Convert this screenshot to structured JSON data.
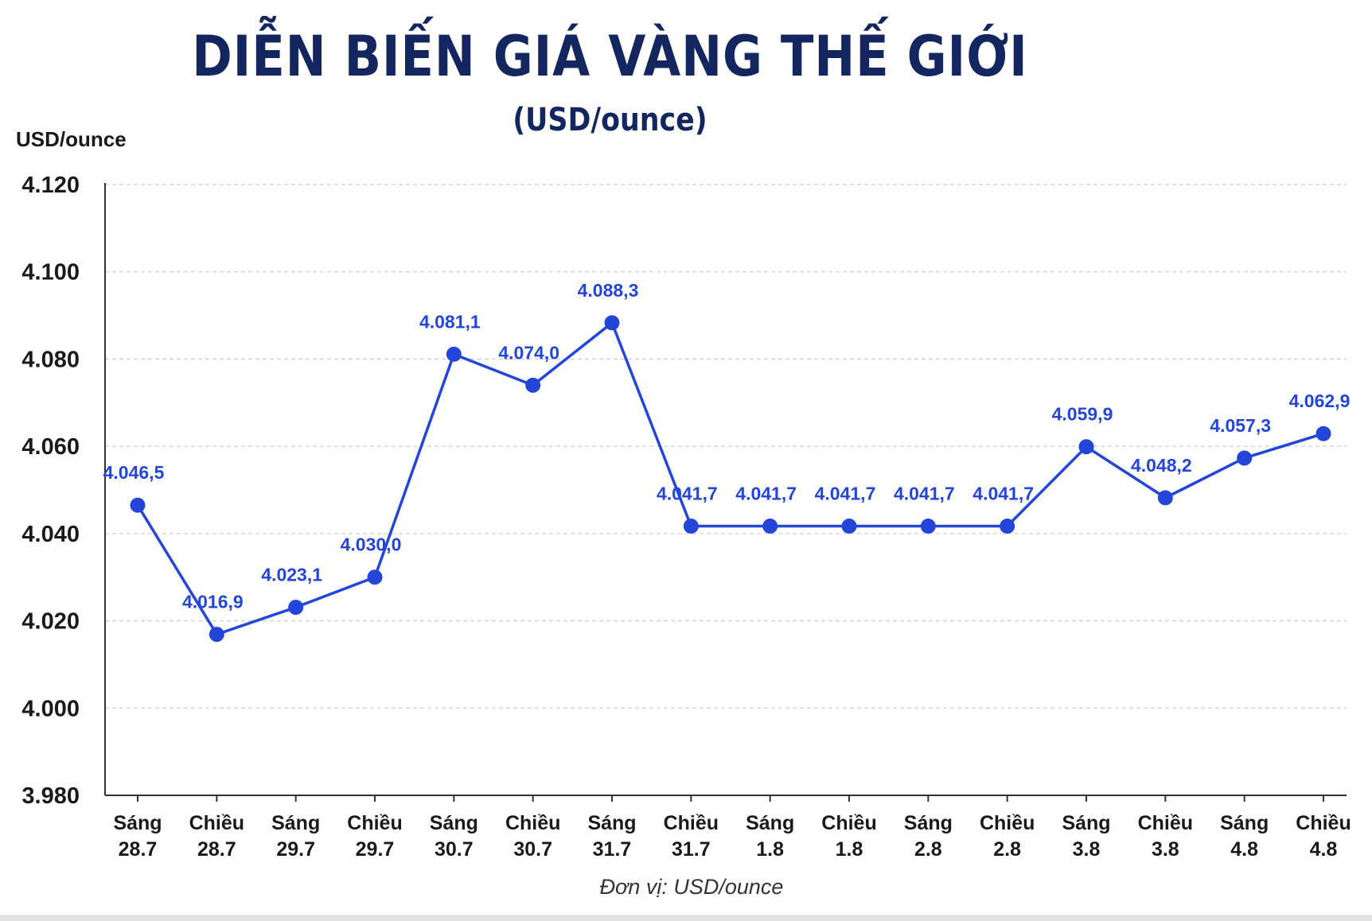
{
  "chart_data": {
    "type": "line",
    "title": "DIỄN BIẾN GIÁ VÀNG THẾ GIỚI",
    "subtitle": "(USD/ounce)",
    "ylabel": "USD/ounce",
    "footnote": "Đơn vị: USD/ounce",
    "ylim": [
      3980,
      4120
    ],
    "yticks": [
      {
        "value": 3980,
        "label": "3.980"
      },
      {
        "value": 4000,
        "label": "4.000"
      },
      {
        "value": 4020,
        "label": "4.020"
      },
      {
        "value": 4040,
        "label": "4.040"
      },
      {
        "value": 4060,
        "label": "4.060"
      },
      {
        "value": 4080,
        "label": "4.080"
      },
      {
        "value": 4100,
        "label": "4.100"
      },
      {
        "value": 4120,
        "label": "4.120"
      }
    ],
    "grid": true,
    "color": "#2446d8",
    "categories": [
      {
        "line1": "Sáng",
        "line2": "28.7"
      },
      {
        "line1": "Chiều",
        "line2": "28.7"
      },
      {
        "line1": "Sáng",
        "line2": "29.7"
      },
      {
        "line1": "Chiều",
        "line2": "29.7"
      },
      {
        "line1": "Sáng",
        "line2": "30.7"
      },
      {
        "line1": "Chiều",
        "line2": "30.7"
      },
      {
        "line1": "Sáng",
        "line2": "31.7"
      },
      {
        "line1": "Chiều",
        "line2": "31.7"
      },
      {
        "line1": "Sáng",
        "line2": "1.8"
      },
      {
        "line1": "Chiều",
        "line2": "1.8"
      },
      {
        "line1": "Sáng",
        "line2": "2.8"
      },
      {
        "line1": "Chiều",
        "line2": "2.8"
      },
      {
        "line1": "Sáng",
        "line2": "3.8"
      },
      {
        "line1": "Chiều",
        "line2": "3.8"
      },
      {
        "line1": "Sáng",
        "line2": "4.8"
      },
      {
        "line1": "Chiều",
        "line2": "4.8"
      }
    ],
    "values": [
      4046.5,
      4016.9,
      4023.1,
      4030.0,
      4081.1,
      4074.0,
      4088.3,
      4041.7,
      4041.7,
      4041.7,
      4041.7,
      4041.7,
      4059.9,
      4048.2,
      4057.3,
      4062.9
    ],
    "value_labels": [
      "4.046,5",
      "4.016,9",
      "4.023,1",
      "4.030,0",
      "4.081,1",
      "4.074,0",
      "4.088,3",
      "4.041,7",
      "4.041,7",
      "4.041,7",
      "4.041,7",
      "4.041,7",
      "4.059,9",
      "4.048,2",
      "4.057,3",
      "4.062,9"
    ]
  }
}
